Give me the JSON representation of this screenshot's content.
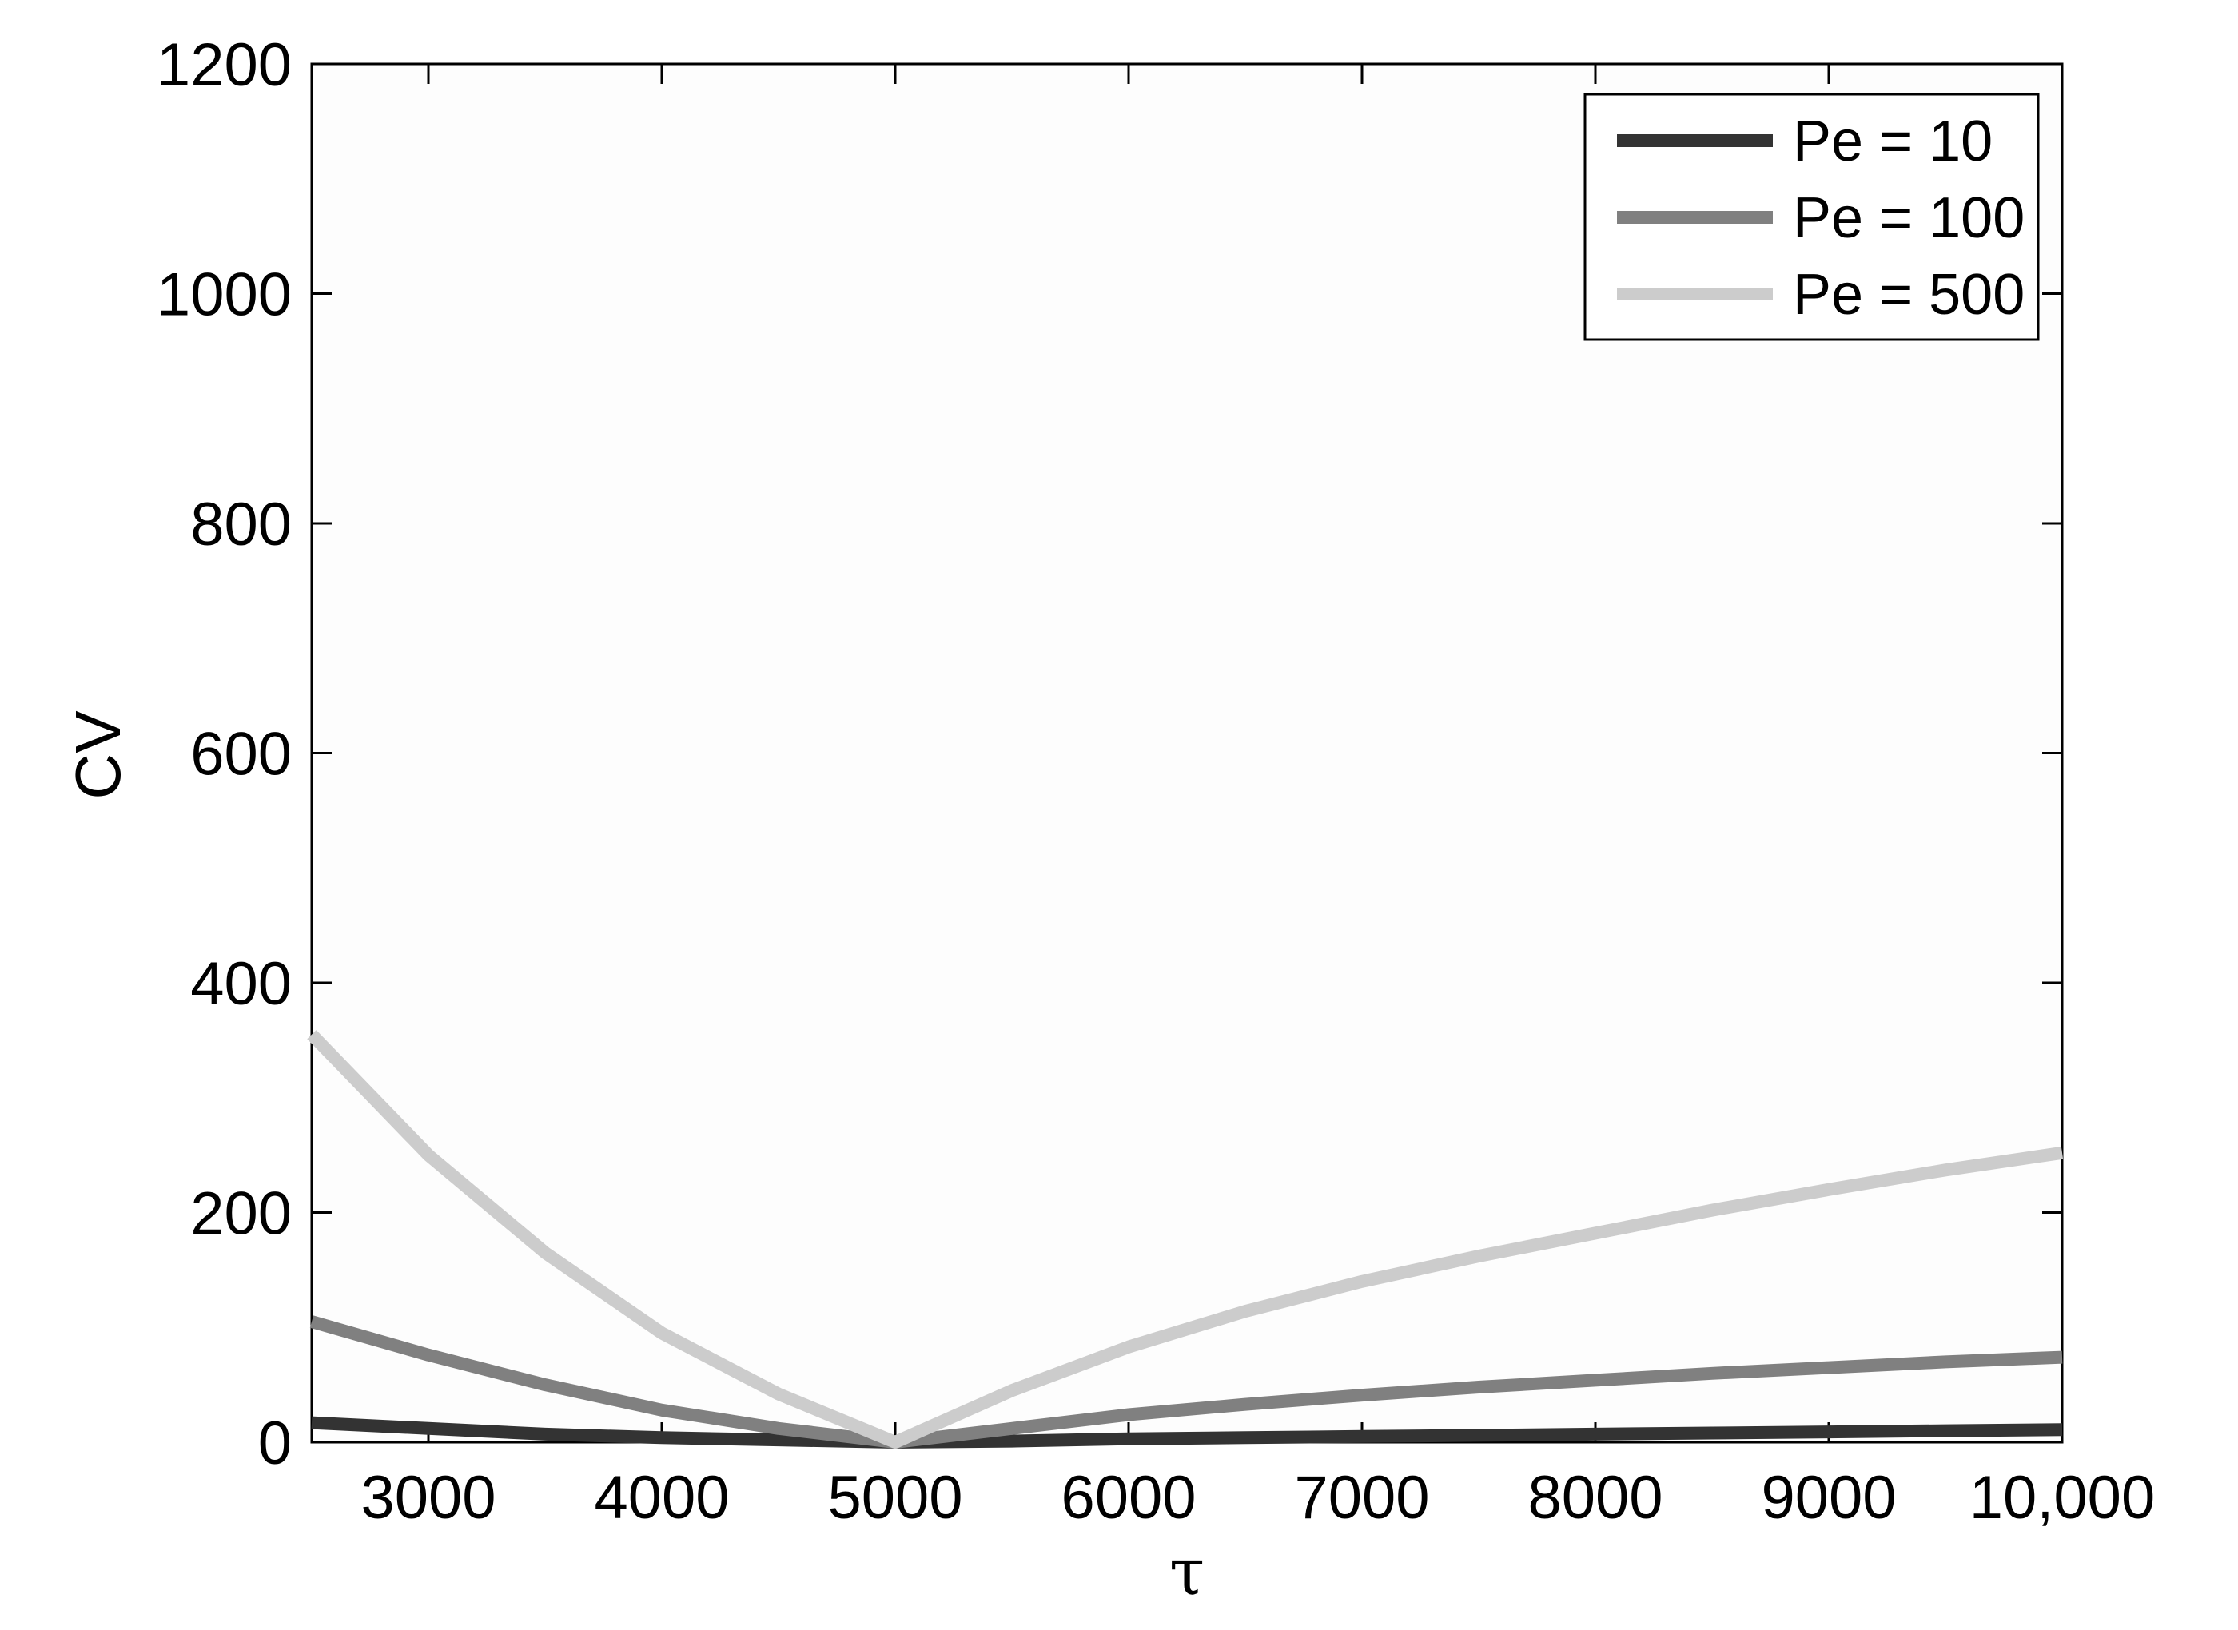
{
  "chart_data": {
    "type": "line",
    "title": "",
    "xlabel": "τ",
    "ylabel": "CV",
    "xlim": [
      2500,
      10000
    ],
    "ylim": [
      0,
      1200
    ],
    "xticks": [
      3000,
      4000,
      5000,
      6000,
      7000,
      8000,
      9000,
      10000
    ],
    "xtick_labels": [
      "3000",
      "4000",
      "5000",
      "6000",
      "7000",
      "8000",
      "9000",
      "10,000"
    ],
    "yticks": [
      0,
      200,
      400,
      600,
      800,
      1000,
      1200
    ],
    "ytick_labels": [
      "0",
      "200",
      "400",
      "600",
      "800",
      "1000",
      "1200"
    ],
    "grid": false,
    "legend_position": "top-right",
    "series": [
      {
        "name": "Pe = 10",
        "color": "#333333",
        "x": [
          2500,
          3000,
          3500,
          4000,
          4500,
          5000,
          5500,
          6000,
          6500,
          7000,
          7500,
          8000,
          8500,
          9000,
          9500,
          10000
        ],
        "y": [
          17,
          12,
          7,
          4,
          2,
          0,
          1,
          3,
          4,
          5,
          6,
          7,
          8,
          9,
          10,
          11
        ]
      },
      {
        "name": "Pe = 100",
        "color": "#808080",
        "x": [
          2500,
          3000,
          3500,
          4000,
          4500,
          5000,
          5500,
          6000,
          6500,
          7000,
          7500,
          8000,
          8500,
          9000,
          9500,
          10000
        ],
        "y": [
          105,
          76,
          50,
          28,
          12,
          0,
          12,
          24,
          33,
          41,
          48,
          54,
          60,
          65,
          70,
          74
        ]
      },
      {
        "name": "Pe = 500",
        "color": "#cccccc",
        "x": [
          2500,
          3000,
          3500,
          4000,
          4500,
          5000,
          5500,
          6000,
          6500,
          7000,
          7500,
          8000,
          8500,
          9000,
          9500,
          10000
        ],
        "y": [
          355,
          250,
          165,
          95,
          42,
          0,
          45,
          83,
          114,
          140,
          162,
          182,
          202,
          220,
          237,
          252
        ]
      }
    ]
  }
}
